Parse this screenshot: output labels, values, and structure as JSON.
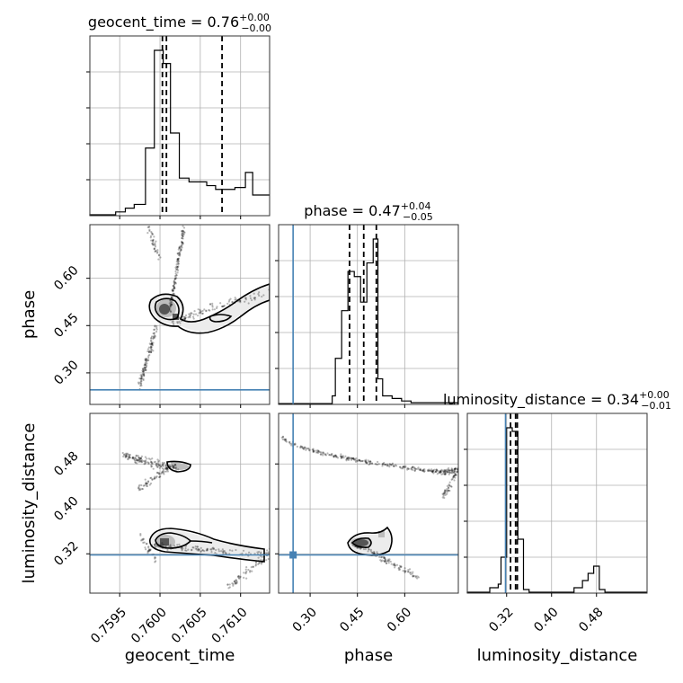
{
  "chart_data": {
    "type": "corner",
    "parameters": [
      "geocent_time",
      "phase",
      "luminosity_distance"
    ],
    "titles": {
      "geocent_time": {
        "name": "geocent_time",
        "value": "0.76",
        "plus": "+0.00",
        "minus": "−0.00"
      },
      "phase": {
        "name": "phase",
        "value": "0.47",
        "plus": "+0.04",
        "minus": "−0.05"
      },
      "luminosity_distance": {
        "name": "luminosity_distance",
        "value": "0.34",
        "plus": "+0.00",
        "minus": "−0.01"
      }
    },
    "axes": {
      "geocent_time": {
        "range": [
          0.75913,
          0.76136
        ],
        "ticks": [
          0.7595,
          0.76,
          0.7605,
          0.761
        ],
        "tick_labels": [
          "0.7595",
          "0.7600",
          "0.7605",
          "0.7610"
        ],
        "label": "geocent_time"
      },
      "phase": {
        "range": [
          0.2,
          0.77
        ],
        "ticks": [
          0.3,
          0.45,
          0.6
        ],
        "tick_labels": [
          "0.30",
          "0.45",
          "0.60"
        ],
        "label": "phase"
      },
      "luminosity_distance": {
        "range": [
          0.25,
          0.57
        ],
        "ticks": [
          0.32,
          0.4,
          0.48
        ],
        "tick_labels": [
          "0.32",
          "0.40",
          "0.48"
        ],
        "label": "luminosity_distance"
      }
    },
    "truths": {
      "phase": 0.246,
      "luminosity_distance": 0.318
    },
    "quantiles": {
      "geocent_time": [
        0.76003,
        0.76008,
        0.76077
      ],
      "phase": [
        0.425,
        0.47,
        0.51
      ],
      "luminosity_distance": [
        0.327,
        0.336,
        0.339
      ]
    },
    "histograms": {
      "geocent_time": {
        "bin_edges": [
          0.75913,
          0.75945,
          0.75957,
          0.75968,
          0.75982,
          0.75993,
          0.76004,
          0.76013,
          0.76024,
          0.76036,
          0.76047,
          0.76058,
          0.76069,
          0.76081,
          0.76093,
          0.76106,
          0.76115,
          0.76127,
          0.76136
        ],
        "counts": [
          0.005,
          0.02,
          0.04,
          0.06,
          0.36,
          0.88,
          0.81,
          0.44,
          0.2,
          0.18,
          0.18,
          0.16,
          0.14,
          0.14,
          0.15,
          0.23,
          0.11,
          0.11
        ]
      },
      "phase": {
        "bin_edges": [
          0.2,
          0.37,
          0.38,
          0.4,
          0.42,
          0.44,
          0.46,
          0.48,
          0.5,
          0.515,
          0.53,
          0.56,
          0.59,
          0.62,
          0.77
        ],
        "counts": [
          0.005,
          0.05,
          0.27,
          0.55,
          0.78,
          0.75,
          0.6,
          0.83,
          0.97,
          0.15,
          0.05,
          0.035,
          0.02,
          0.01
        ]
      },
      "luminosity_distance": {
        "bin_edges": [
          0.25,
          0.29,
          0.305,
          0.31,
          0.32,
          0.33,
          0.34,
          0.35,
          0.36,
          0.44,
          0.455,
          0.465,
          0.475,
          0.485,
          0.495,
          0.57
        ],
        "counts": [
          0.005,
          0.03,
          0.05,
          0.2,
          0.92,
          0.9,
          0.3,
          0.02,
          0.005,
          0.03,
          0.07,
          0.11,
          0.15,
          0.02,
          0.005
        ]
      }
    },
    "grid": true,
    "truth_color": "#4682b4",
    "contour_color": "#000000"
  }
}
